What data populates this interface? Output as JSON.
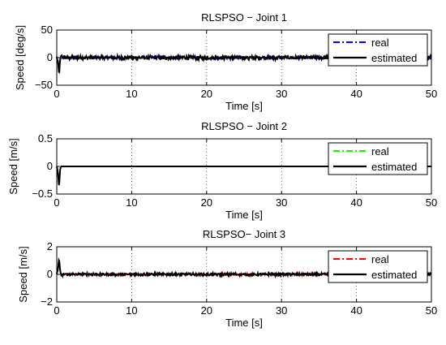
{
  "chart_data": [
    {
      "type": "line",
      "title": "RLSPSO − Joint 1",
      "xlabel": "Time [s]",
      "ylabel": "Speed [deg/s]",
      "xlim": [
        0,
        50
      ],
      "ylim": [
        -50,
        50
      ],
      "xticks": [
        "0",
        "10",
        "20",
        "30",
        "40",
        "50"
      ],
      "yticks": [
        "−50",
        "0",
        "50"
      ],
      "grid": "vertical-dotted",
      "legend_position": "top-right",
      "transient": {
        "t": [
          0,
          0.15,
          0.3,
          0.45,
          0.6,
          0.9
        ],
        "y": [
          0,
          -8,
          -30,
          -5,
          4,
          0
        ]
      },
      "noise_amplitude": 3,
      "series": [
        {
          "name": "real",
          "color": "#0000ff",
          "style": "dash-dot"
        },
        {
          "name": "estimated",
          "color": "#000000",
          "style": "solid"
        }
      ]
    },
    {
      "type": "line",
      "title": "RLSPSO − Joint 2",
      "xlabel": "Time [s]",
      "ylabel": "Speed [m/s]",
      "xlim": [
        0,
        50
      ],
      "ylim": [
        -0.5,
        0.5
      ],
      "xticks": [
        "0",
        "10",
        "20",
        "30",
        "40",
        "50"
      ],
      "yticks": [
        "−0.5",
        "0",
        "0.5"
      ],
      "grid": "vertical-dotted",
      "legend_position": "top-right",
      "transient": {
        "t": [
          0,
          0.15,
          0.3,
          0.45,
          0.6,
          0.9
        ],
        "y": [
          0,
          -0.1,
          -0.38,
          -0.05,
          0.0,
          0
        ]
      },
      "noise_amplitude": 0,
      "series": [
        {
          "name": "real",
          "color": "#00ff00",
          "style": "dash-dot"
        },
        {
          "name": "estimated",
          "color": "#000000",
          "style": "solid"
        }
      ]
    },
    {
      "type": "line",
      "title": "RLSPSO− Joint 3",
      "xlabel": "Time [s]",
      "ylabel": "Speed [m/s]",
      "xlim": [
        0,
        50
      ],
      "ylim": [
        -2,
        2
      ],
      "xticks": [
        "0",
        "10",
        "20",
        "30",
        "40",
        "50"
      ],
      "yticks": [
        "−2",
        "0",
        "2"
      ],
      "grid": "vertical-dotted",
      "legend_position": "top-right",
      "transient": {
        "t": [
          0,
          0.15,
          0.3,
          0.45,
          0.6,
          0.9
        ],
        "y": [
          0,
          0.4,
          1.1,
          0.3,
          -0.1,
          0
        ]
      },
      "noise_amplitude": 0.08,
      "series": [
        {
          "name": "real",
          "color": "#ff0000",
          "style": "dash-dot"
        },
        {
          "name": "estimated",
          "color": "#000000",
          "style": "solid"
        }
      ]
    }
  ]
}
